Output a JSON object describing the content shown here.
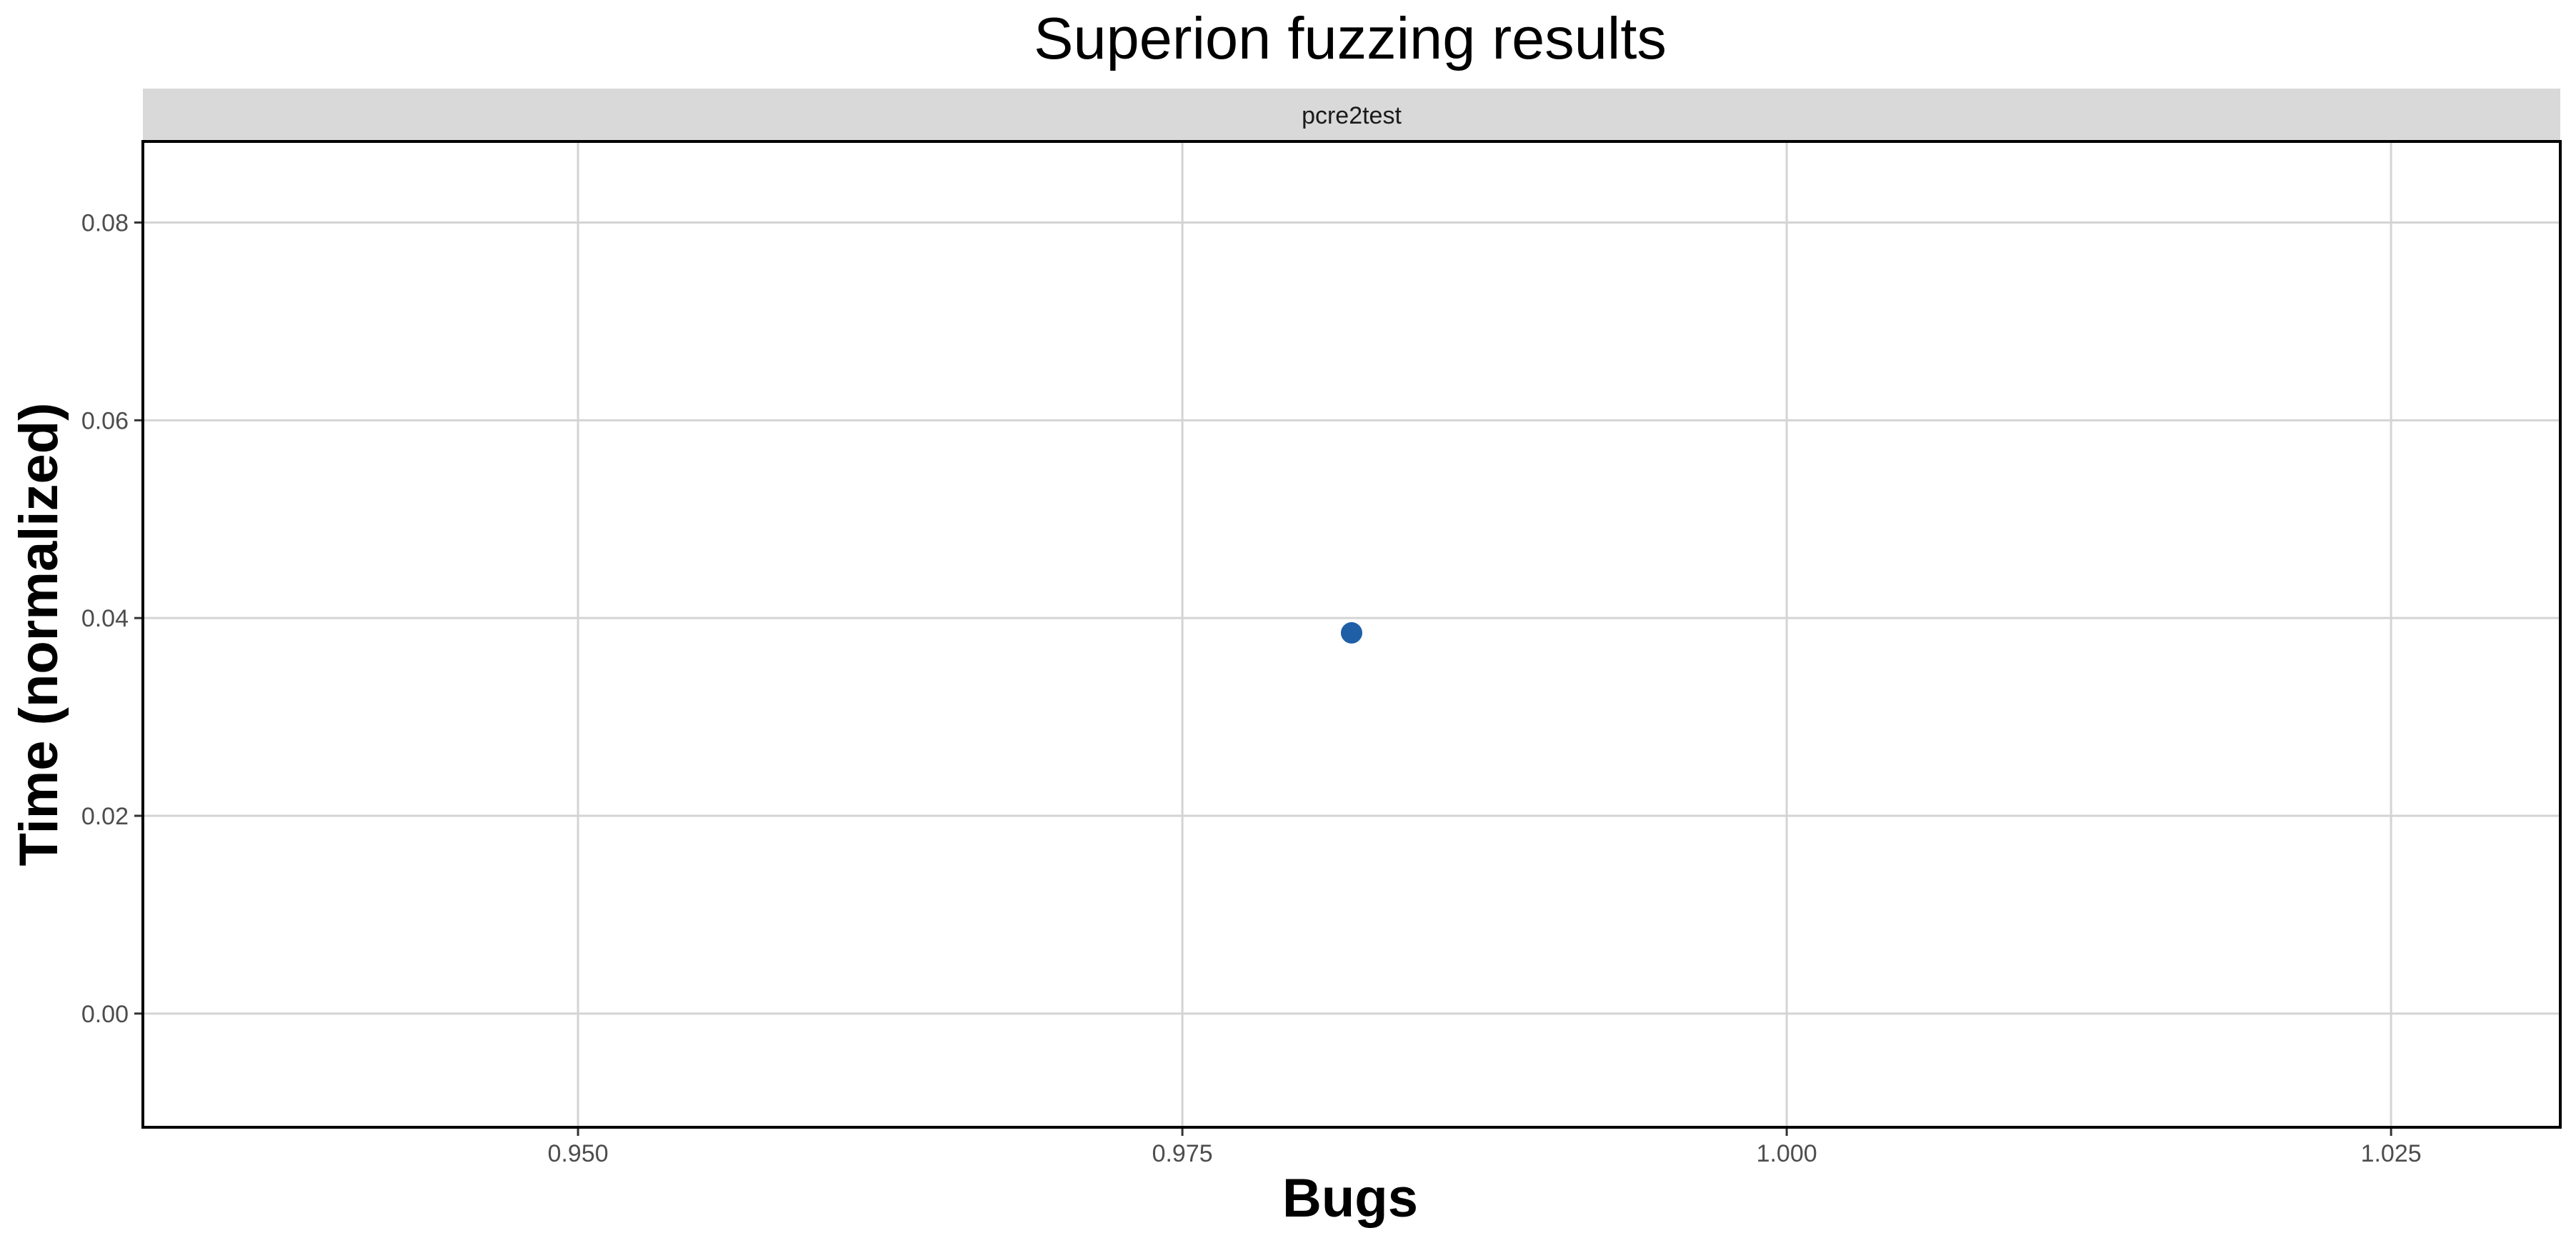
{
  "chart_data": {
    "type": "scatter",
    "title": "Superion fuzzing results",
    "facet": "pcre2test",
    "xlabel": "Bugs",
    "ylabel": "Time (normalized)",
    "xlim": [
      0.932,
      1.032
    ],
    "ylim": [
      -0.0115,
      0.0882
    ],
    "x_ticks": [
      0.95,
      0.975,
      1.0,
      1.025
    ],
    "x_tick_labels": [
      "0.950",
      "0.975",
      "1.000",
      "1.025"
    ],
    "y_ticks": [
      0.0,
      0.02,
      0.04,
      0.06,
      0.08
    ],
    "y_tick_labels": [
      "0.00",
      "0.02",
      "0.04",
      "0.06",
      "0.08"
    ],
    "grid": true,
    "legend": "none",
    "series": [
      {
        "color": "#1f5fa6",
        "points": [
          {
            "x": 0.982,
            "y": 0.0385
          }
        ]
      }
    ]
  },
  "colors": {
    "point": "#1f5fa6",
    "grid": "#d4d4d4",
    "strip_bg": "#d9d9d9",
    "panel_border": "#000000"
  }
}
